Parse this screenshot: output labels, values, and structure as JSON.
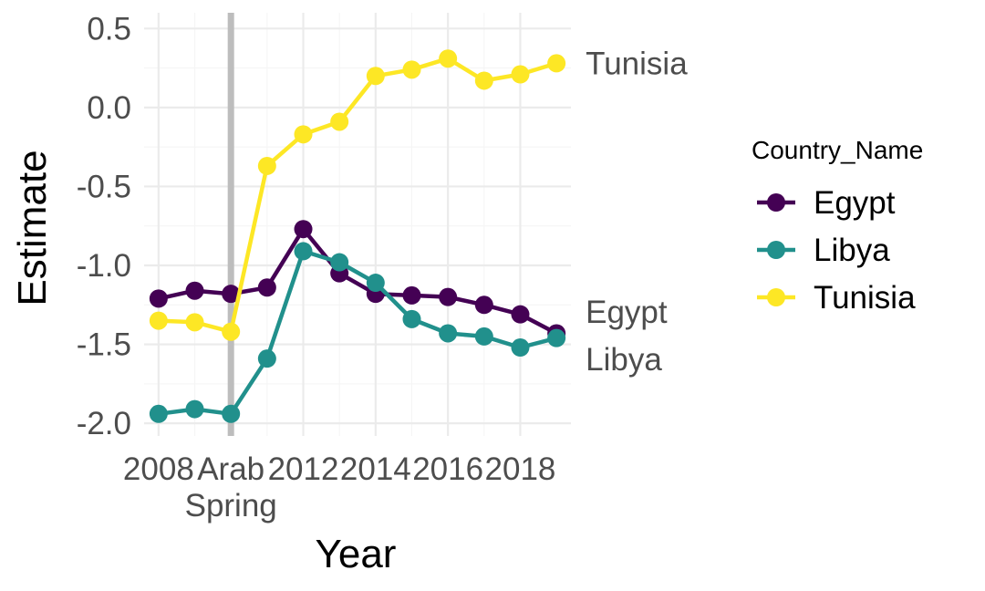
{
  "chart_data": {
    "type": "line",
    "title": "",
    "xlabel": "Year",
    "ylabel": "Estimate",
    "xlim": [
      2007.6,
      2019.4
    ],
    "ylim": [
      -2.08,
      0.6
    ],
    "x_ticks": [
      {
        "value": 2008,
        "label": "2008"
      },
      {
        "value": 2010,
        "label": "Arab Spring"
      },
      {
        "value": 2012,
        "label": "2012"
      },
      {
        "value": 2014,
        "label": "2014"
      },
      {
        "value": 2016,
        "label": "2016"
      },
      {
        "value": 2018,
        "label": "2018"
      }
    ],
    "y_ticks": [
      {
        "value": 0.5,
        "label": "0.5"
      },
      {
        "value": 0.0,
        "label": "0.0"
      },
      {
        "value": -0.5,
        "label": "-0.5"
      },
      {
        "value": -1.0,
        "label": "-1.0"
      },
      {
        "value": -1.5,
        "label": "-1.5"
      },
      {
        "value": -2.0,
        "label": "-2.0"
      }
    ],
    "vline": {
      "x": 2010,
      "color": "#bdbdbd"
    },
    "x": [
      2008,
      2009,
      2010,
      2011,
      2012,
      2013,
      2014,
      2015,
      2016,
      2017,
      2018,
      2019
    ],
    "series": [
      {
        "name": "Egypt",
        "color": "#440154",
        "values": [
          -1.21,
          -1.16,
          -1.18,
          -1.14,
          -0.77,
          -1.05,
          -1.18,
          -1.19,
          -1.2,
          -1.25,
          -1.31,
          -1.43
        ],
        "end_label": "Egypt"
      },
      {
        "name": "Libya",
        "color": "#21908c",
        "values": [
          -1.94,
          -1.91,
          -1.94,
          -1.59,
          -0.91,
          -0.98,
          -1.11,
          -1.34,
          -1.43,
          -1.45,
          -1.52,
          -1.46
        ],
        "end_label": "Libya"
      },
      {
        "name": "Tunisia",
        "color": "#fde725",
        "values": [
          -1.35,
          -1.36,
          -1.42,
          -0.37,
          -0.17,
          -0.09,
          0.2,
          0.24,
          0.31,
          0.17,
          0.21,
          0.28
        ],
        "end_label": "Tunisia"
      }
    ],
    "grid": true,
    "legend": {
      "title": "Country_Name",
      "position": "right"
    }
  }
}
